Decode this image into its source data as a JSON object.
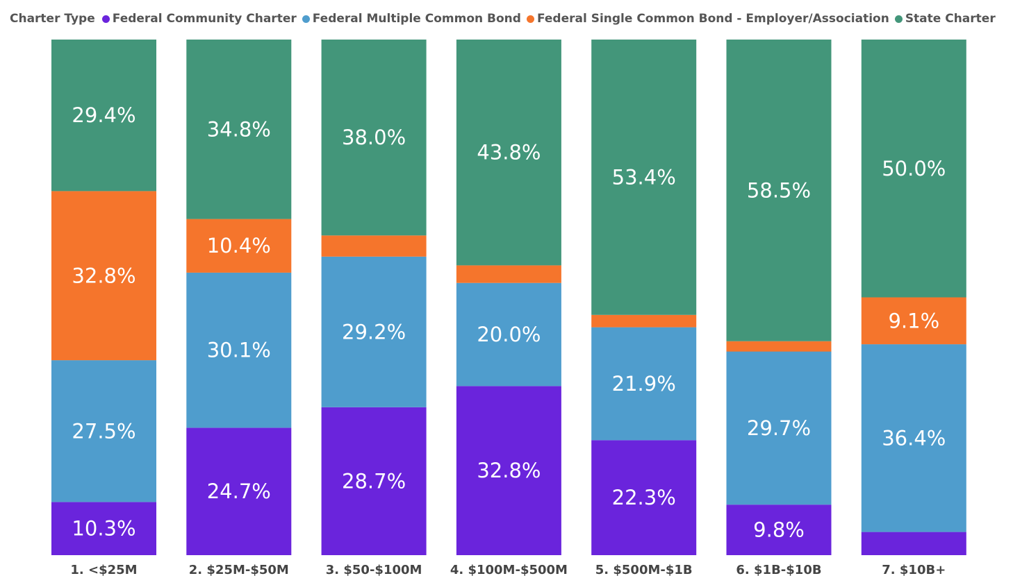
{
  "chart_data": {
    "type": "bar",
    "stacked": true,
    "normalized_percent": true,
    "legend_title": "Charter Type",
    "legend_position": "top-left",
    "grid": false,
    "ylim": [
      0,
      100
    ],
    "categories": [
      "1. <$25M",
      "2. $25M-$50M",
      "3. $50-$100M",
      "4. $100M-$500M",
      "5. $500M-$1B",
      "6. $1B-$10B",
      "7. $10B+"
    ],
    "series": [
      {
        "name": "Federal Community Charter",
        "color": "#6A24DC",
        "values": [
          10.3,
          24.7,
          28.7,
          32.8,
          22.3,
          9.8,
          4.5
        ],
        "labels": [
          "10.3%",
          "24.7%",
          "28.7%",
          "32.8%",
          "22.3%",
          "9.8%",
          ""
        ]
      },
      {
        "name": "Federal Multiple Common Bond",
        "color": "#4F9DCD",
        "values": [
          27.5,
          30.1,
          29.2,
          20.0,
          21.9,
          29.7,
          36.4
        ],
        "labels": [
          "27.5%",
          "30.1%",
          "29.2%",
          "20.0%",
          "21.9%",
          "29.7%",
          "36.4%"
        ]
      },
      {
        "name": "Federal Single Common Bond - Employer/Association",
        "color": "#F5752C",
        "values": [
          32.8,
          10.4,
          4.1,
          3.4,
          2.4,
          2.0,
          9.1
        ],
        "labels": [
          "32.8%",
          "10.4%",
          "",
          "",
          "",
          "",
          "9.1%"
        ]
      },
      {
        "name": "State Charter",
        "color": "#43967A",
        "values": [
          29.4,
          34.8,
          38.0,
          43.8,
          53.4,
          58.5,
          50.0
        ],
        "labels": [
          "29.4%",
          "34.8%",
          "38.0%",
          "43.8%",
          "53.4%",
          "58.5%",
          "50.0%"
        ]
      }
    ]
  }
}
